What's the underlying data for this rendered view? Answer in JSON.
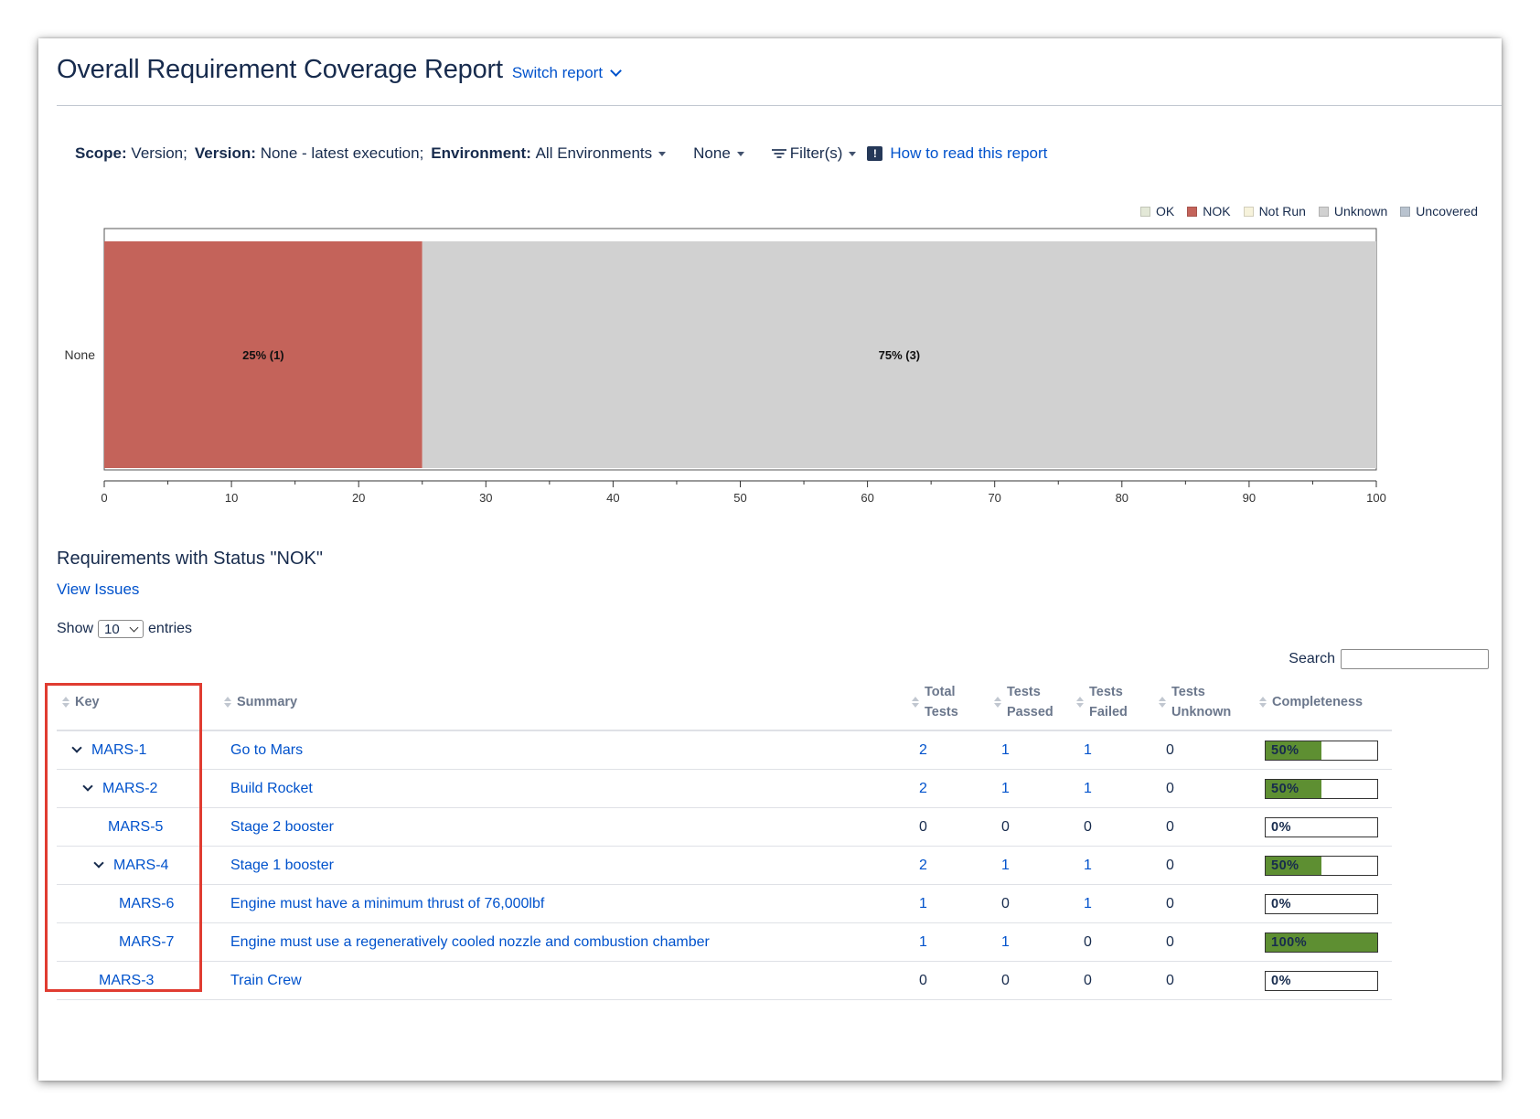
{
  "header": {
    "title": "Overall Requirement Coverage Report",
    "switch_report": "Switch report"
  },
  "scope": {
    "scope_label": "Scope:",
    "scope_value": "Version;",
    "version_label": "Version:",
    "version_value": "None - latest execution;",
    "environment_label": "Environment:",
    "environment_value": "All Environments",
    "none_dropdown": "None",
    "filters": "Filter(s)",
    "how_to_read": "How to read this report"
  },
  "legend": [
    {
      "label": "OK",
      "color": "#e3e8d7"
    },
    {
      "label": "NOK",
      "color": "#c4635a"
    },
    {
      "label": "Not Run",
      "color": "#f7f3dc"
    },
    {
      "label": "Unknown",
      "color": "#d1d1d1"
    },
    {
      "label": "Uncovered",
      "color": "#b9c3cf"
    }
  ],
  "chart_data": {
    "type": "bar",
    "orientation": "horizontal",
    "stacked": true,
    "categories": [
      "None"
    ],
    "series": [
      {
        "name": "NOK",
        "values": [
          25
        ],
        "label": "25% (1)",
        "color": "#c4635a"
      },
      {
        "name": "Unknown",
        "values": [
          75
        ],
        "label": "75% (3)",
        "color": "#d1d1d1"
      }
    ],
    "xlim": [
      0,
      100
    ],
    "xticks": [
      "0",
      "10",
      "20",
      "30",
      "40",
      "50",
      "60",
      "70",
      "80",
      "90",
      "100"
    ],
    "legend_position": "top-right"
  },
  "section": {
    "title": "Requirements with Status \"NOK\"",
    "view_issues": "View Issues"
  },
  "entries": {
    "show": "Show",
    "value": "10",
    "suffix": "entries"
  },
  "search": {
    "label": "Search"
  },
  "table": {
    "headers": {
      "key": "Key",
      "summary": "Summary",
      "total_1": "Total",
      "total_2": "Tests",
      "passed_1": "Tests",
      "passed_2": "Passed",
      "failed_1": "Tests",
      "failed_2": "Failed",
      "unknown_1": "Tests",
      "unknown_2": "Unknown",
      "completeness": "Completeness"
    },
    "rows": [
      {
        "key": "MARS-1",
        "summary": "Go to Mars",
        "total": "2",
        "passed": "1",
        "failed": "1",
        "unknown": "0",
        "completeness": "50%",
        "pct": 50
      },
      {
        "key": "MARS-2",
        "summary": "Build Rocket",
        "total": "2",
        "passed": "1",
        "failed": "1",
        "unknown": "0",
        "completeness": "50%",
        "pct": 50
      },
      {
        "key": "MARS-5",
        "summary": "Stage 2 booster",
        "total": "0",
        "passed": "0",
        "failed": "0",
        "unknown": "0",
        "completeness": "0%",
        "pct": 0
      },
      {
        "key": "MARS-4",
        "summary": "Stage 1 booster",
        "total": "2",
        "passed": "1",
        "failed": "1",
        "unknown": "0",
        "completeness": "50%",
        "pct": 50
      },
      {
        "key": "MARS-6",
        "summary": "Engine must have a minimum thrust of 76,000lbf",
        "total": "1",
        "passed": "0",
        "failed": "1",
        "unknown": "0",
        "completeness": "0%",
        "pct": 0
      },
      {
        "key": "MARS-7",
        "summary": "Engine must use a regeneratively cooled nozzle and combustion chamber",
        "total": "1",
        "passed": "1",
        "failed": "0",
        "unknown": "0",
        "completeness": "100%",
        "pct": 100
      },
      {
        "key": "MARS-3",
        "summary": "Train Crew",
        "total": "0",
        "passed": "0",
        "failed": "0",
        "unknown": "0",
        "completeness": "0%",
        "pct": 0
      }
    ]
  }
}
